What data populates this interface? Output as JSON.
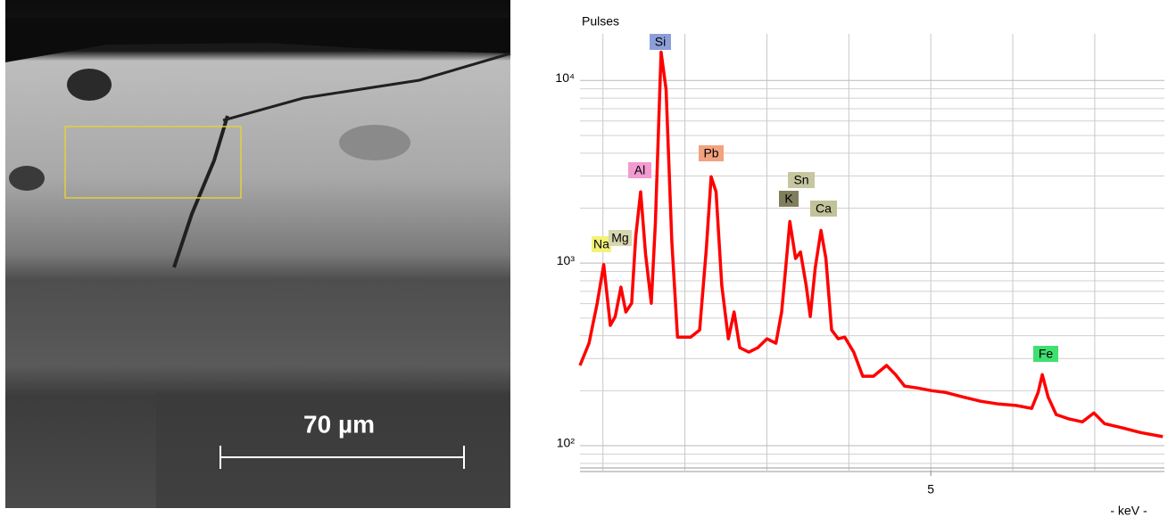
{
  "image": {
    "scale_bar": "70 µm"
  },
  "chart_data": {
    "type": "line",
    "y_label": "Pulses",
    "x_label": "- keV -",
    "log_y": true,
    "grid": true,
    "color": "#ff0000",
    "xlim": [
      0.72,
      7.85
    ],
    "xticks": [
      5
    ],
    "x_gridlines": [
      1,
      2,
      3,
      4,
      5,
      6,
      7
    ],
    "ylim": [
      73,
      18000
    ],
    "yticks": [
      {
        "value": 100,
        "label": "10²"
      },
      {
        "value": 1000,
        "label": "10³"
      },
      {
        "value": 10000,
        "label": "10⁴"
      }
    ],
    "y_minor_gridlines": [
      80,
      90,
      200,
      300,
      400,
      500,
      600,
      700,
      800,
      900,
      2000,
      3000,
      4000,
      5000,
      6000,
      7000,
      8000,
      9000
    ],
    "x": [
      0.72,
      0.83,
      0.93,
      1.01,
      1.09,
      1.15,
      1.22,
      1.28,
      1.35,
      1.4,
      1.46,
      1.52,
      1.59,
      1.64,
      1.71,
      1.77,
      1.84,
      1.91,
      2.07,
      2.18,
      2.26,
      2.32,
      2.38,
      2.45,
      2.53,
      2.6,
      2.67,
      2.78,
      2.89,
      3.0,
      3.11,
      3.18,
      3.23,
      3.28,
      3.35,
      3.41,
      3.48,
      3.53,
      3.59,
      3.66,
      3.72,
      3.79,
      3.87,
      3.95,
      4.06,
      4.17,
      4.3,
      4.46,
      4.57,
      4.68,
      4.84,
      5.01,
      5.17,
      5.39,
      5.61,
      5.83,
      6.04,
      6.23,
      6.31,
      6.36,
      6.43,
      6.53,
      6.69,
      6.85,
      6.99,
      7.12,
      7.34,
      7.56,
      7.83
    ],
    "values": [
      275,
      364,
      603,
      980,
      456,
      510,
      738,
      540,
      603,
      1400,
      2455,
      1120,
      603,
      1660,
      14300,
      8930,
      1320,
      393,
      393,
      430,
      1180,
      2970,
      2455,
      755,
      385,
      540,
      344,
      325,
      344,
      385,
      364,
      540,
      946,
      1690,
      1060,
      1150,
      755,
      510,
      946,
      1510,
      1060,
      430,
      385,
      393,
      325,
      240,
      240,
      275,
      245,
      212,
      207,
      200,
      196,
      185,
      175,
      169,
      166,
      160,
      196,
      245,
      185,
      148,
      140,
      135,
      151,
      132,
      125,
      118,
      112
    ],
    "annotations": [
      {
        "text": "Si",
        "color": "#8c9fd9"
      },
      {
        "text": "Al",
        "color": "#f29bd0"
      },
      {
        "text": "Pb",
        "color": "#f2a27e"
      },
      {
        "text": "Na",
        "color": "#f2f27a"
      },
      {
        "text": "Mg",
        "color": "#d6d6b0"
      },
      {
        "text": "Sn",
        "color": "#c6c6a0"
      },
      {
        "text": "K",
        "color": "#7f7f5e"
      },
      {
        "text": "Ca",
        "color": "#c2c29a"
      },
      {
        "text": "Fe",
        "color": "#3fe070"
      }
    ]
  }
}
